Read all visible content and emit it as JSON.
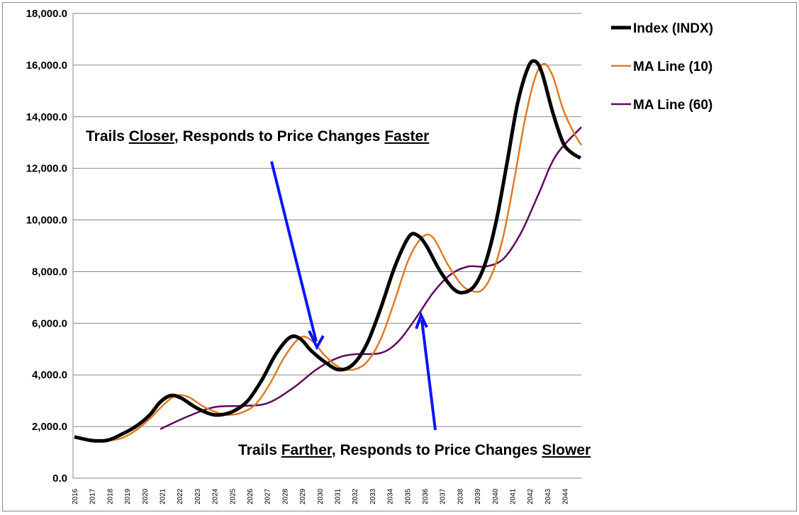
{
  "chart_data": {
    "type": "line",
    "title": "",
    "xlabel": "",
    "ylabel": "",
    "ylim": [
      0,
      18000
    ],
    "yticks": [
      "0.0",
      "2,000.0",
      "4,000.0",
      "6,000.0",
      "8,000.0",
      "10,000.0",
      "12,000.0",
      "14,000.0",
      "16,000.0",
      "18,000.0"
    ],
    "xticks": [
      "2016",
      "2017",
      "2018",
      "2019",
      "2020",
      "2021",
      "2022",
      "2023",
      "2024",
      "2025",
      "2026",
      "2027",
      "2028",
      "2029",
      "2030",
      "2031",
      "2032",
      "2033",
      "2034",
      "2035",
      "2036",
      "2037",
      "2038",
      "2039",
      "2040",
      "2041",
      "2042",
      "2043",
      "2044"
    ],
    "xlim": [
      2016,
      2045
    ],
    "grid": "horizontal",
    "legend_position": "right",
    "series": [
      {
        "name": "Index (INDX)",
        "color": "#000000",
        "x": [
          2016.0,
          2016.5,
          2017.1,
          2017.9,
          2018.7,
          2019.5,
          2020.3,
          2020.9,
          2021.5,
          2022.1,
          2022.9,
          2023.7,
          2024.3,
          2025.1,
          2025.9,
          2026.7,
          2027.5,
          2028.3,
          2028.9,
          2029.5,
          2030.3,
          2031.1,
          2031.9,
          2032.7,
          2033.5,
          2034.3,
          2035.1,
          2035.6,
          2036.1,
          2036.9,
          2037.7,
          2038.3,
          2038.9,
          2039.5,
          2040.1,
          2040.7,
          2041.3,
          2041.9,
          2042.3,
          2042.7,
          2043.3,
          2043.9,
          2044.4,
          2044.9
        ],
        "values": [
          1600,
          1520,
          1450,
          1470,
          1700,
          2000,
          2450,
          2950,
          3200,
          3100,
          2750,
          2500,
          2450,
          2600,
          3000,
          3800,
          4800,
          5450,
          5400,
          4950,
          4500,
          4200,
          4400,
          5200,
          6600,
          8200,
          9350,
          9400,
          9000,
          8000,
          7300,
          7200,
          7500,
          8400,
          10000,
          12200,
          14500,
          15900,
          16150,
          15700,
          14200,
          13000,
          12600,
          12400
        ]
      },
      {
        "name": "MA Line (10)",
        "color": "#e07b20",
        "x": [
          2017.9,
          2018.7,
          2019.5,
          2020.3,
          2021.1,
          2021.8,
          2022.5,
          2023.3,
          2024.1,
          2024.8,
          2025.6,
          2026.4,
          2027.2,
          2028.0,
          2028.9,
          2029.6,
          2030.3,
          2031.1,
          2031.9,
          2032.7,
          2033.5,
          2034.3,
          2035.1,
          2035.9,
          2036.5,
          2037.3,
          2038.1,
          2038.7,
          2039.3,
          2039.9,
          2040.5,
          2041.1,
          2041.7,
          2042.3,
          2042.8,
          2043.3,
          2043.9,
          2044.5,
          2044.95
        ],
        "values": [
          1450,
          1550,
          1850,
          2300,
          2850,
          3200,
          3150,
          2800,
          2550,
          2450,
          2550,
          2900,
          3700,
          4700,
          5450,
          5300,
          4750,
          4300,
          4200,
          4500,
          5400,
          6900,
          8500,
          9350,
          9300,
          8300,
          7500,
          7250,
          7300,
          8000,
          9400,
          11500,
          13800,
          15500,
          16050,
          15600,
          14300,
          13400,
          12900
        ]
      },
      {
        "name": "MA Line (60)",
        "color": "#5c0a5c",
        "x": [
          2020.9,
          2022.5,
          2024.0,
          2025.5,
          2027.0,
          2028.5,
          2029.8,
          2031.0,
          2032.0,
          2033.5,
          2034.5,
          2035.5,
          2036.5,
          2037.5,
          2038.5,
          2039.5,
          2040.5,
          2041.5,
          2042.5,
          2043.5,
          2044.95
        ],
        "values": [
          1900,
          2400,
          2750,
          2800,
          2900,
          3500,
          4200,
          4650,
          4800,
          4850,
          5300,
          6200,
          7200,
          7900,
          8200,
          8200,
          8500,
          9500,
          11000,
          12500,
          13600
        ]
      }
    ],
    "annotations": [
      {
        "parts": [
          {
            "text": "Trails "
          },
          {
            "text": "Closer",
            "u": true
          },
          {
            "text": ", Responds to Price Changes "
          },
          {
            "text": "Faster",
            "u": true
          }
        ]
      },
      {
        "parts": [
          {
            "text": "Trails "
          },
          {
            "text": "Farther",
            "u": true
          },
          {
            "text": ", Responds to Price Changes "
          },
          {
            "text": "Slower",
            "u": true
          }
        ]
      }
    ],
    "arrow_color": "#0a14ff"
  }
}
